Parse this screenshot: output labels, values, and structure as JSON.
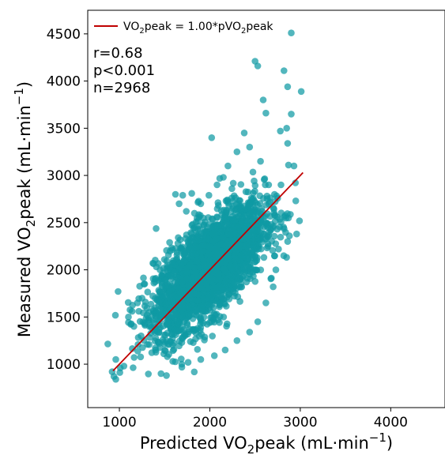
{
  "chart_data": {
    "type": "scatter",
    "xlabel": {
      "prefix": "Predicted VO",
      "sub": "2",
      "mid": "peak (mL·min",
      "sup": "−1",
      "suffix": ")"
    },
    "ylabel": {
      "prefix": "Measured VO",
      "sub": "2",
      "mid": "peak (mL·min",
      "sup": "−1",
      "suffix": ")"
    },
    "xlim": [
      650,
      4600
    ],
    "ylim": [
      540,
      4750
    ],
    "xticks": [
      1000,
      2000,
      3000,
      4000
    ],
    "yticks": [
      1000,
      1500,
      2000,
      2500,
      3000,
      3500,
      4000,
      4500
    ],
    "grid": false,
    "legend": {
      "placement": "top-left",
      "entries": [
        {
          "prefix": "VO",
          "sub": "2",
          "mid": "peak =  1.00*pVO",
          "sub2": "2",
          "suffix": "peak",
          "color": "#c00000"
        }
      ]
    },
    "stats": [
      "r=0.68",
      "p<0.001",
      "n=2968"
    ],
    "point_color": "#0f9aa4",
    "line_color": "#c00000",
    "fit_line": {
      "x": [
        930,
        3030
      ],
      "y": [
        930,
        3030
      ]
    },
    "series": [
      {
        "n": 2968,
        "cloud": {
          "center": [
            2000,
            2020
          ],
          "spread": [
            300,
            330
          ],
          "correlation": 0.68
        },
        "points": [
          {
            "x": 2900,
            "y": 4510
          },
          {
            "x": 2500,
            "y": 4210
          },
          {
            "x": 2530,
            "y": 4160
          },
          {
            "x": 2820,
            "y": 4110
          },
          {
            "x": 3010,
            "y": 3890
          },
          {
            "x": 2860,
            "y": 3940
          },
          {
            "x": 2590,
            "y": 3800
          },
          {
            "x": 2620,
            "y": 3660
          },
          {
            "x": 2900,
            "y": 3650
          },
          {
            "x": 2850,
            "y": 3500
          },
          {
            "x": 2780,
            "y": 3470
          },
          {
            "x": 2020,
            "y": 3400
          },
          {
            "x": 2860,
            "y": 3340
          },
          {
            "x": 2930,
            "y": 3100
          },
          {
            "x": 2870,
            "y": 3110
          },
          {
            "x": 2950,
            "y": 2730
          },
          {
            "x": 2870,
            "y": 2550
          },
          {
            "x": 2960,
            "y": 2380
          },
          {
            "x": 2880,
            "y": 2360
          },
          {
            "x": 2860,
            "y": 2300
          },
          {
            "x": 2760,
            "y": 2220
          },
          {
            "x": 920,
            "y": 920
          },
          {
            "x": 940,
            "y": 870
          },
          {
            "x": 960,
            "y": 840
          },
          {
            "x": 1010,
            "y": 960
          },
          {
            "x": 1050,
            "y": 980
          },
          {
            "x": 960,
            "y": 1050
          },
          {
            "x": 1460,
            "y": 900
          },
          {
            "x": 1520,
            "y": 880
          },
          {
            "x": 1140,
            "y": 1560
          },
          {
            "x": 1100,
            "y": 1500
          },
          {
            "x": 1620,
            "y": 2800
          },
          {
            "x": 1700,
            "y": 2790
          },
          {
            "x": 1660,
            "y": 2700
          },
          {
            "x": 1740,
            "y": 2620
          },
          {
            "x": 1800,
            "y": 2810
          },
          {
            "x": 1830,
            "y": 2600
          },
          {
            "x": 1530,
            "y": 2050
          },
          {
            "x": 1450,
            "y": 2000
          },
          {
            "x": 1370,
            "y": 2070
          },
          {
            "x": 1280,
            "y": 1850
          },
          {
            "x": 1250,
            "y": 1700
          },
          {
            "x": 1200,
            "y": 1650
          },
          {
            "x": 1160,
            "y": 1400
          },
          {
            "x": 1240,
            "y": 1300
          },
          {
            "x": 1310,
            "y": 1210
          },
          {
            "x": 1400,
            "y": 1150
          },
          {
            "x": 1530,
            "y": 1080
          },
          {
            "x": 1690,
            "y": 1000
          },
          {
            "x": 1760,
            "y": 1020
          },
          {
            "x": 1900,
            "y": 1050
          },
          {
            "x": 2050,
            "y": 1090
          },
          {
            "x": 2170,
            "y": 1150
          },
          {
            "x": 2300,
            "y": 1250
          },
          {
            "x": 2440,
            "y": 1340
          },
          {
            "x": 2530,
            "y": 1450
          },
          {
            "x": 2620,
            "y": 1650
          },
          {
            "x": 2700,
            "y": 1820
          },
          {
            "x": 2730,
            "y": 2000
          },
          {
            "x": 2700,
            "y": 2450
          },
          {
            "x": 2650,
            "y": 2900
          },
          {
            "x": 2560,
            "y": 3150
          },
          {
            "x": 2440,
            "y": 3300
          },
          {
            "x": 2380,
            "y": 3450
          },
          {
            "x": 2300,
            "y": 3250
          },
          {
            "x": 2200,
            "y": 3100
          },
          {
            "x": 2150,
            "y": 2980
          },
          {
            "x": 2080,
            "y": 2900
          },
          {
            "x": 1990,
            "y": 2790
          },
          {
            "x": 1900,
            "y": 2700
          },
          {
            "x": 1830,
            "y": 2450
          },
          {
            "x": 1760,
            "y": 2300
          }
        ]
      }
    ]
  }
}
